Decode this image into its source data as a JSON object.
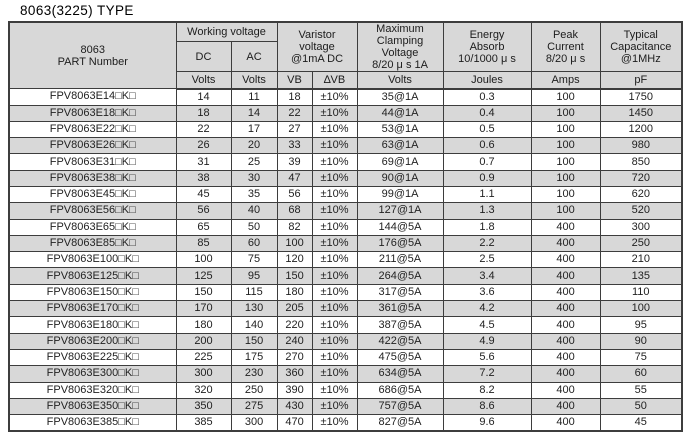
{
  "title": "8063(3225) TYPE",
  "colors": {
    "header_bg": "#d8d8d8",
    "stripe_bg": "#d8d8d8",
    "row_bg": "#ffffff",
    "border": "#3d3d3d",
    "text": "#1c1c1c"
  },
  "table": {
    "header": {
      "part_number": "8063\nPART Number",
      "working_voltage": "Working voltage",
      "dc": "DC",
      "ac": "AC",
      "varistor_voltage": "Varistor\nvoltage\n@1mA DC",
      "max_clamping": "Maximum\nClamping\nVoltage\n8/20 μ s 1A",
      "energy_absorb": "Energy\nAbsorb\n10/1000 μ s",
      "peak_current": "Peak\nCurrent\n8/20 μ s",
      "typical_capacitance": "Typical\nCapacitance\n@1MHz",
      "units": [
        "Volts",
        "Volts",
        "VB",
        "∆VB",
        "Volts",
        "Joules",
        "Amps",
        "pF"
      ]
    },
    "column_names": [
      "part-number",
      "dc-volts",
      "ac-volts",
      "vb",
      "delta-vb",
      "clamping-voltage",
      "energy-joules",
      "peak-amps",
      "capacitance-pf"
    ],
    "rows": [
      [
        "FPV8063E14□K□",
        "14",
        "11",
        "18",
        "±10%",
        "35@1A",
        "0.3",
        "100",
        "1750"
      ],
      [
        "FPV8063E18□K□",
        "18",
        "14",
        "22",
        "±10%",
        "44@1A",
        "0.4",
        "100",
        "1450"
      ],
      [
        "FPV8063E22□K□",
        "22",
        "17",
        "27",
        "±10%",
        "53@1A",
        "0.5",
        "100",
        "1200"
      ],
      [
        "FPV8063E26□K□",
        "26",
        "20",
        "33",
        "±10%",
        "63@1A",
        "0.6",
        "100",
        "980"
      ],
      [
        "FPV8063E31□K□",
        "31",
        "25",
        "39",
        "±10%",
        "69@1A",
        "0.7",
        "100",
        "850"
      ],
      [
        "FPV8063E38□K□",
        "38",
        "30",
        "47",
        "±10%",
        "90@1A",
        "0.9",
        "100",
        "720"
      ],
      [
        "FPV8063E45□K□",
        "45",
        "35",
        "56",
        "±10%",
        "99@1A",
        "1.1",
        "100",
        "620"
      ],
      [
        "FPV8063E56□K□",
        "56",
        "40",
        "68",
        "±10%",
        "127@1A",
        "1.3",
        "100",
        "520"
      ],
      [
        "FPV8063E65□K□",
        "65",
        "50",
        "82",
        "±10%",
        "144@5A",
        "1.8",
        "400",
        "300"
      ],
      [
        "FPV8063E85□K□",
        "85",
        "60",
        "100",
        "±10%",
        "176@5A",
        "2.2",
        "400",
        "250"
      ],
      [
        "FPV8063E100□K□",
        "100",
        "75",
        "120",
        "±10%",
        "211@5A",
        "2.5",
        "400",
        "210"
      ],
      [
        "FPV8063E125□K□",
        "125",
        "95",
        "150",
        "±10%",
        "264@5A",
        "3.4",
        "400",
        "135"
      ],
      [
        "FPV8063E150□K□",
        "150",
        "115",
        "180",
        "±10%",
        "317@5A",
        "3.6",
        "400",
        "110"
      ],
      [
        "FPV8063E170□K□",
        "170",
        "130",
        "205",
        "±10%",
        "361@5A",
        "4.2",
        "400",
        "100"
      ],
      [
        "FPV8063E180□K□",
        "180",
        "140",
        "220",
        "±10%",
        "387@5A",
        "4.5",
        "400",
        "95"
      ],
      [
        "FPV8063E200□K□",
        "200",
        "150",
        "240",
        "±10%",
        "422@5A",
        "4.9",
        "400",
        "90"
      ],
      [
        "FPV8063E225□K□",
        "225",
        "175",
        "270",
        "±10%",
        "475@5A",
        "5.6",
        "400",
        "75"
      ],
      [
        "FPV8063E300□K□",
        "300",
        "230",
        "360",
        "±10%",
        "634@5A",
        "7.2",
        "400",
        "60"
      ],
      [
        "FPV8063E320□K□",
        "320",
        "250",
        "390",
        "±10%",
        "686@5A",
        "8.2",
        "400",
        "55"
      ],
      [
        "FPV8063E350□K□",
        "350",
        "275",
        "430",
        "±10%",
        "757@5A",
        "8.6",
        "400",
        "50"
      ],
      [
        "FPV8063E385□K□",
        "385",
        "300",
        "470",
        "±10%",
        "827@5A",
        "9.6",
        "400",
        "45"
      ]
    ]
  }
}
